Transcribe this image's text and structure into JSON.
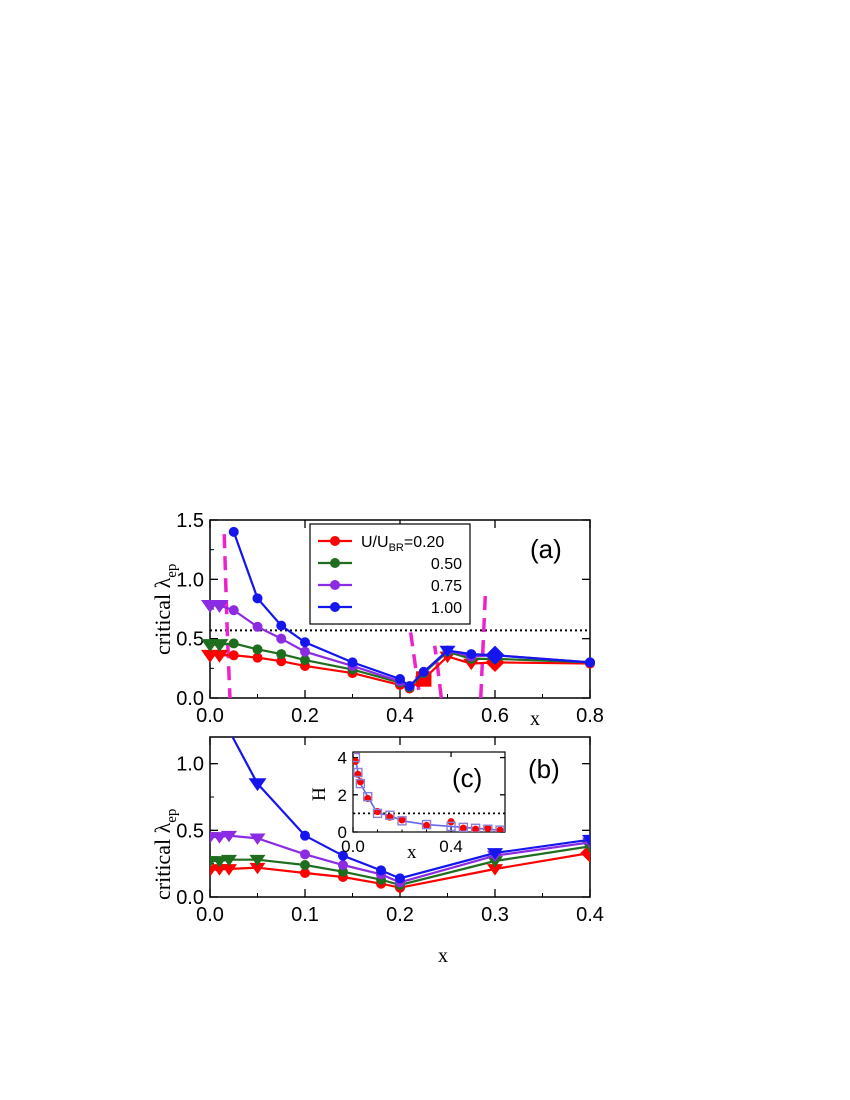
{
  "chart_data": [
    {
      "panel": "(a)",
      "type": "line",
      "xlabel": "x",
      "ylabel_main": "critical λ",
      "ylabel_sub": "ep",
      "xlim": [
        0,
        0.8
      ],
      "ylim": [
        0,
        1.5
      ],
      "xticks": [
        "0.0",
        "0.2",
        "0.4",
        "0.6",
        "0.8"
      ],
      "yticks": [
        "0.0",
        "0.5",
        "1.0",
        "1.5"
      ],
      "legend": {
        "placement": "top-center",
        "entries": [
          {
            "prefix": "U/U",
            "sub": "BR",
            "suffix": "=0.20"
          },
          {
            "prefix": "",
            "sub": "",
            "suffix": "0.50"
          },
          {
            "prefix": "",
            "sub": "",
            "suffix": "0.75"
          },
          {
            "prefix": "",
            "sub": "",
            "suffix": "1.00"
          }
        ]
      },
      "reference_line": {
        "y": 0.57,
        "style": "dotted",
        "color": "#000000"
      },
      "series": [
        {
          "color": "#ff0000",
          "x": [
            0.0,
            0.02,
            0.05,
            0.1,
            0.15,
            0.2,
            0.3,
            0.4,
            0.42,
            0.45,
            0.5,
            0.55,
            0.6,
            0.8
          ],
          "y": [
            0.36,
            0.36,
            0.36,
            0.34,
            0.31,
            0.27,
            0.21,
            0.11,
            0.08,
            0.16,
            0.35,
            0.29,
            0.3,
            0.29
          ]
        },
        {
          "color": "#1f6e1f",
          "x": [
            0.0,
            0.02,
            0.05,
            0.1,
            0.15,
            0.2,
            0.3,
            0.4,
            0.42,
            0.45,
            0.5,
            0.55,
            0.6,
            0.8
          ],
          "y": [
            0.45,
            0.45,
            0.46,
            0.41,
            0.37,
            0.32,
            0.24,
            0.13,
            0.09,
            0.21,
            0.39,
            0.33,
            0.33,
            0.3
          ]
        },
        {
          "color": "#8b2be2",
          "x": [
            0.0,
            0.02,
            0.05,
            0.1,
            0.15,
            0.2,
            0.3,
            0.4,
            0.42,
            0.45,
            0.5,
            0.55,
            0.6,
            0.8
          ],
          "y": [
            0.78,
            0.78,
            0.74,
            0.6,
            0.5,
            0.39,
            0.27,
            0.14,
            0.1,
            0.22,
            0.4,
            0.35,
            0.36,
            0.3
          ]
        },
        {
          "color": "#1515ee",
          "x": [
            0.05,
            0.1,
            0.15,
            0.2,
            0.3,
            0.4,
            0.42,
            0.45,
            0.5,
            0.55,
            0.6,
            0.8
          ],
          "y": [
            1.4,
            0.84,
            0.61,
            0.47,
            0.3,
            0.16,
            0.1,
            0.22,
            0.4,
            0.37,
            0.36,
            0.3
          ]
        }
      ],
      "magenta_curves": [
        {
          "x": [
            0.03,
            0.036,
            0.042
          ],
          "y": [
            1.38,
            0.6,
            0.0
          ]
        },
        {
          "x": [
            0.41,
            0.426,
            0.442
          ],
          "y": [
            0.92,
            0.45,
            0.0
          ]
        },
        {
          "x": [
            0.487,
            0.478,
            0.473
          ],
          "y": [
            0.0,
            0.3,
            0.44
          ]
        },
        {
          "x": [
            0.57,
            0.575,
            0.58
          ],
          "y": [
            0.0,
            0.45,
            0.9
          ]
        }
      ]
    },
    {
      "panel": "(b)",
      "type": "line",
      "xlabel": "x",
      "ylabel_main": "critical λ",
      "ylabel_sub": "ep",
      "xlim": [
        0,
        0.4
      ],
      "ylim": [
        0,
        1.2
      ],
      "xticks": [
        "0.0",
        "0.1",
        "0.2",
        "0.3",
        "0.4"
      ],
      "yticks": [
        "0.0",
        "0.5",
        "1.0"
      ],
      "series": [
        {
          "color": "#ff0000",
          "x": [
            0.0,
            0.01,
            0.02,
            0.05,
            0.1,
            0.14,
            0.18,
            0.2,
            0.3,
            0.4
          ],
          "y": [
            0.2,
            0.21,
            0.21,
            0.22,
            0.18,
            0.15,
            0.1,
            0.07,
            0.21,
            0.33
          ]
        },
        {
          "color": "#1f6e1f",
          "x": [
            0.0,
            0.01,
            0.02,
            0.05,
            0.1,
            0.14,
            0.18,
            0.2,
            0.3,
            0.4
          ],
          "y": [
            0.27,
            0.27,
            0.28,
            0.28,
            0.24,
            0.19,
            0.13,
            0.09,
            0.27,
            0.38
          ]
        },
        {
          "color": "#8b2be2",
          "x": [
            0.0,
            0.01,
            0.02,
            0.05,
            0.1,
            0.14,
            0.18,
            0.2,
            0.3,
            0.4
          ],
          "y": [
            0.45,
            0.45,
            0.46,
            0.44,
            0.32,
            0.24,
            0.17,
            0.11,
            0.31,
            0.41
          ]
        },
        {
          "color": "#1515ee",
          "x": [
            0.02,
            0.05,
            0.1,
            0.14,
            0.18,
            0.2,
            0.3,
            0.4
          ],
          "y": [
            1.25,
            0.85,
            0.46,
            0.31,
            0.2,
            0.14,
            0.33,
            0.43
          ]
        }
      ]
    },
    {
      "panel": "(c)",
      "type": "scatter",
      "xlabel": "x",
      "ylabel": "H",
      "xlim": [
        0,
        0.62
      ],
      "ylim": [
        0,
        4.3
      ],
      "xticks": [
        "0.0",
        "0.4"
      ],
      "yticks": [
        "0",
        "2",
        "4"
      ],
      "reference_line": {
        "y": 1.0,
        "style": "dotted",
        "color": "#000000"
      },
      "series": [
        {
          "color": "#ff0000",
          "marker": "filled-circle",
          "x": [
            0.01,
            0.02,
            0.03,
            0.06,
            0.1,
            0.15,
            0.2,
            0.3,
            0.4,
            0.45,
            0.5,
            0.55,
            0.6
          ],
          "y": [
            3.8,
            3.1,
            2.7,
            1.8,
            1.1,
            0.8,
            0.65,
            0.35,
            0.55,
            0.2,
            0.15,
            0.2,
            0.1
          ]
        },
        {
          "color": "#8b7fd8",
          "marker": "open-square",
          "x": [
            0.01,
            0.02,
            0.03,
            0.06,
            0.1,
            0.15,
            0.2,
            0.3,
            0.4,
            0.45,
            0.5,
            0.55,
            0.6
          ],
          "y": [
            4.0,
            3.2,
            2.6,
            1.9,
            1.0,
            0.9,
            0.6,
            0.4,
            0.3,
            0.25,
            0.2,
            0.15,
            0.1
          ]
        }
      ],
      "fit_line": {
        "color": "#6666ee"
      }
    }
  ]
}
